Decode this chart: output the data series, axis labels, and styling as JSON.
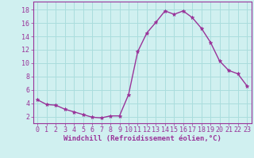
{
  "x": [
    0,
    1,
    2,
    3,
    4,
    5,
    6,
    7,
    8,
    9,
    10,
    11,
    12,
    13,
    14,
    15,
    16,
    17,
    18,
    19,
    20,
    21,
    22,
    23
  ],
  "y": [
    4.5,
    3.8,
    3.7,
    3.1,
    2.7,
    2.3,
    1.9,
    1.8,
    2.1,
    2.1,
    5.3,
    11.7,
    14.5,
    16.1,
    17.8,
    17.3,
    17.8,
    16.8,
    15.2,
    13.1,
    10.3,
    8.9,
    8.4,
    6.6
  ],
  "line_color": "#993399",
  "marker": "*",
  "marker_size": 3.5,
  "bg_color": "#d0f0f0",
  "grid_color": "#aadddd",
  "xlabel": "Windchill (Refroidissement éolien,°C)",
  "ylabel_ticks": [
    2,
    4,
    6,
    8,
    10,
    12,
    14,
    16,
    18
  ],
  "xticks": [
    0,
    1,
    2,
    3,
    4,
    5,
    6,
    7,
    8,
    9,
    10,
    11,
    12,
    13,
    14,
    15,
    16,
    17,
    18,
    19,
    20,
    21,
    22,
    23
  ],
  "xlim": [
    -0.5,
    23.5
  ],
  "ylim": [
    1.0,
    19.2
  ],
  "xlabel_fontsize": 6.5,
  "tick_fontsize": 6,
  "tick_color": "#993399",
  "label_color": "#993399",
  "line_width": 1.0
}
